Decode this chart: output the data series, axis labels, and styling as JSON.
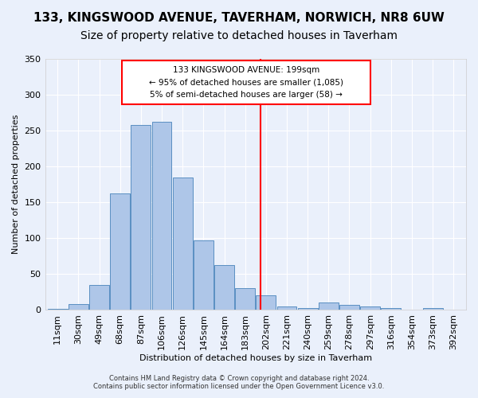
{
  "title": "133, KINGSWOOD AVENUE, TAVERHAM, NORWICH, NR8 6UW",
  "subtitle": "Size of property relative to detached houses in Taverham",
  "xlabel": "Distribution of detached houses by size in Taverham",
  "ylabel": "Number of detached properties",
  "bin_labels": [
    "11sqm",
    "30sqm",
    "49sqm",
    "68sqm",
    "87sqm",
    "106sqm",
    "126sqm",
    "145sqm",
    "164sqm",
    "183sqm",
    "202sqm",
    "221sqm",
    "240sqm",
    "259sqm",
    "278sqm",
    "297sqm",
    "316sqm",
    "354sqm",
    "373sqm",
    "392sqm"
  ],
  "bar_heights": [
    2,
    8,
    35,
    163,
    258,
    262,
    185,
    97,
    63,
    30,
    21,
    5,
    3,
    10,
    7,
    5,
    3,
    0,
    3,
    0
  ],
  "bar_color": "#aec6e8",
  "bar_edge_color": "#5a8fc2",
  "background_color": "#eaf0fb",
  "grid_color": "#ffffff",
  "red_line_x": 9.75,
  "annotation_text": "133 KINGSWOOD AVENUE: 199sqm\n← 95% of detached houses are smaller (1,085)\n5% of semi-detached houses are larger (58) →",
  "footer_line1": "Contains HM Land Registry data © Crown copyright and database right 2024.",
  "footer_line2": "Contains public sector information licensed under the Open Government Licence v3.0.",
  "ylim": [
    0,
    350
  ],
  "yticks": [
    0,
    50,
    100,
    150,
    200,
    250,
    300,
    350
  ],
  "title_fontsize": 11,
  "subtitle_fontsize": 10
}
